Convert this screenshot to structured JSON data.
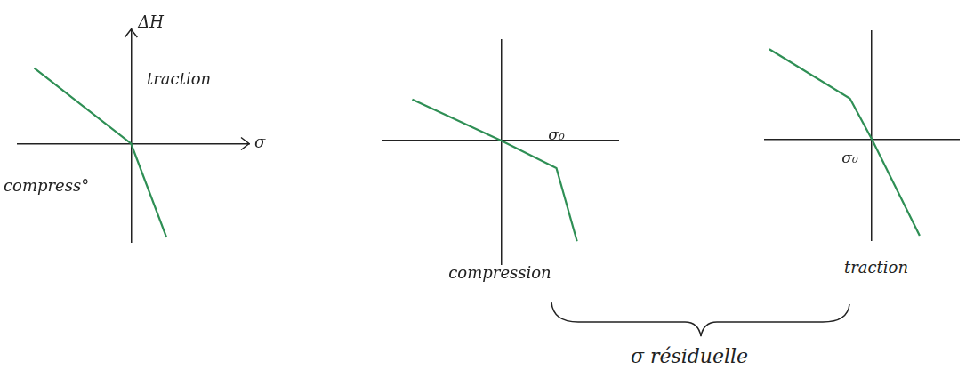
{
  "chart_data": [
    {
      "type": "line",
      "x_label": "σ",
      "y_label": "ΔH",
      "annotations": [
        "traction",
        "compress°"
      ],
      "x": [
        -4.1,
        0,
        1.5
      ],
      "values": [
        3.3,
        0,
        -4.1
      ],
      "color": "#2f8f55",
      "xlim": [
        -4.8,
        5
      ],
      "ylim": [
        -4.3,
        5
      ],
      "grid": false,
      "tick_labels": false
    },
    {
      "type": "line",
      "label": "compression",
      "x": [
        -3.9,
        0,
        2.4,
        3.3
      ],
      "values": [
        1.8,
        0,
        -1.2,
        -4.4
      ],
      "color": "#2f8f55",
      "xlim": [
        -5.2,
        5.1
      ],
      "ylim": [
        -5.4,
        4.4
      ],
      "xticks": [
        {
          "value": 2.4,
          "label": "σ₀"
        }
      ],
      "grid": false,
      "tick_labels": "x"
    },
    {
      "type": "line",
      "label": "traction",
      "x": [
        -4.7,
        -1.0,
        0,
        2.2
      ],
      "values": [
        4.0,
        1.8,
        0,
        -4.3
      ],
      "color": "#2f8f55",
      "xlim": [
        -4.9,
        4.0
      ],
      "ylim": [
        -4.5,
        4.8
      ],
      "xticks": [
        {
          "value": -1.0,
          "label": "σ₀"
        }
      ],
      "grid": false,
      "tick_labels": "x"
    }
  ],
  "caption": "σ résiduelle"
}
